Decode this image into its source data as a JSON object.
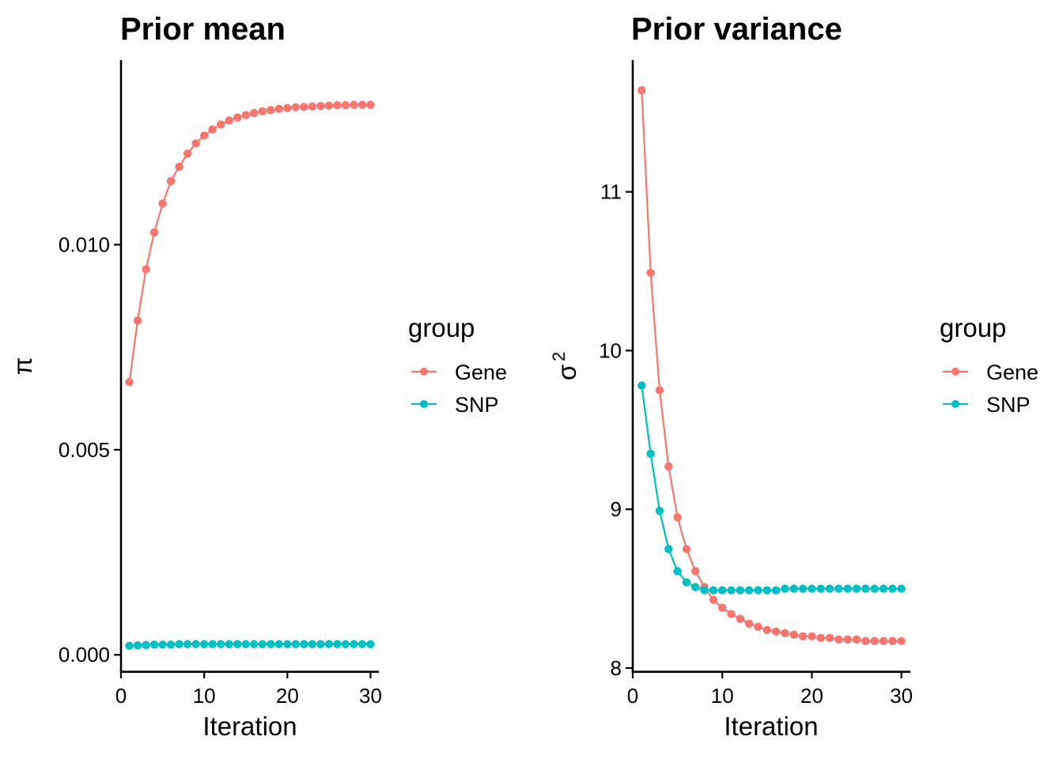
{
  "chart_data": [
    {
      "type": "line",
      "title": "Prior mean",
      "xlabel": "Iteration",
      "ylabel": "π",
      "xlim": [
        0,
        31
      ],
      "ylim": [
        -0.0004,
        0.0145
      ],
      "xticks": [
        0,
        10,
        20,
        30
      ],
      "xtick_labels": [
        "0",
        "10",
        "20",
        "30"
      ],
      "yticks": [
        0.0,
        0.005,
        0.01
      ],
      "ytick_labels": [
        "0.000",
        "0.005",
        "0.010"
      ],
      "grid": false,
      "legend": {
        "title": "group",
        "entries": [
          "Gene",
          "SNP"
        ],
        "placement": "right"
      },
      "x": [
        1,
        2,
        3,
        4,
        5,
        6,
        7,
        8,
        9,
        10,
        11,
        12,
        13,
        14,
        15,
        16,
        17,
        18,
        19,
        20,
        21,
        22,
        23,
        24,
        25,
        26,
        27,
        28,
        29,
        30
      ],
      "series": [
        {
          "name": "Gene",
          "color": "#F8766D",
          "values": [
            0.00665,
            0.00815,
            0.0094,
            0.0103,
            0.011,
            0.01155,
            0.0119,
            0.01222,
            0.01247,
            0.01266,
            0.01281,
            0.01293,
            0.01303,
            0.0131,
            0.01316,
            0.01321,
            0.01325,
            0.01328,
            0.01331,
            0.01333,
            0.01335,
            0.01336,
            0.01337,
            0.01338,
            0.01339,
            0.0134,
            0.0134,
            0.01341,
            0.01341,
            0.01341
          ]
        },
        {
          "name": "SNP",
          "color": "#00BFC4",
          "values": [
            0.00022,
            0.00023,
            0.00024,
            0.00025,
            0.00025,
            0.00025,
            0.00026,
            0.00026,
            0.00026,
            0.00026,
            0.00026,
            0.00026,
            0.00026,
            0.00026,
            0.00026,
            0.00026,
            0.00026,
            0.00026,
            0.00026,
            0.00026,
            0.00026,
            0.00026,
            0.00026,
            0.00026,
            0.00026,
            0.00026,
            0.00026,
            0.00026,
            0.00026,
            0.00026
          ]
        }
      ]
    },
    {
      "type": "line",
      "title": "Prior variance",
      "xlabel": "Iteration",
      "ylabel": "σ",
      "ylabel_superscript": "2",
      "xlim": [
        0,
        31
      ],
      "ylim": [
        7.98,
        11.83
      ],
      "xticks": [
        0,
        10,
        20,
        30
      ],
      "xtick_labels": [
        "0",
        "10",
        "20",
        "30"
      ],
      "yticks": [
        8,
        9,
        10,
        11
      ],
      "ytick_labels": [
        "8",
        "9",
        "10",
        "11"
      ],
      "grid": false,
      "legend": {
        "title": "group",
        "entries": [
          "Gene",
          "SNP"
        ],
        "placement": "right"
      },
      "x": [
        1,
        2,
        3,
        4,
        5,
        6,
        7,
        8,
        9,
        10,
        11,
        12,
        13,
        14,
        15,
        16,
        17,
        18,
        19,
        20,
        21,
        22,
        23,
        24,
        25,
        26,
        27,
        28,
        29,
        30
      ],
      "series": [
        {
          "name": "Gene",
          "color": "#F8766D",
          "values": [
            11.64,
            10.49,
            9.75,
            9.27,
            8.95,
            8.75,
            8.61,
            8.51,
            8.43,
            8.38,
            8.34,
            8.31,
            8.28,
            8.26,
            8.24,
            8.23,
            8.22,
            8.21,
            8.2,
            8.2,
            8.19,
            8.19,
            8.18,
            8.18,
            8.18,
            8.17,
            8.17,
            8.17,
            8.17,
            8.17
          ]
        },
        {
          "name": "SNP",
          "color": "#00BFC4",
          "values": [
            9.78,
            9.35,
            8.99,
            8.75,
            8.61,
            8.54,
            8.51,
            8.49,
            8.49,
            8.49,
            8.49,
            8.49,
            8.49,
            8.49,
            8.49,
            8.49,
            8.5,
            8.5,
            8.5,
            8.5,
            8.5,
            8.5,
            8.5,
            8.5,
            8.5,
            8.5,
            8.5,
            8.5,
            8.5,
            8.5
          ]
        }
      ]
    }
  ]
}
